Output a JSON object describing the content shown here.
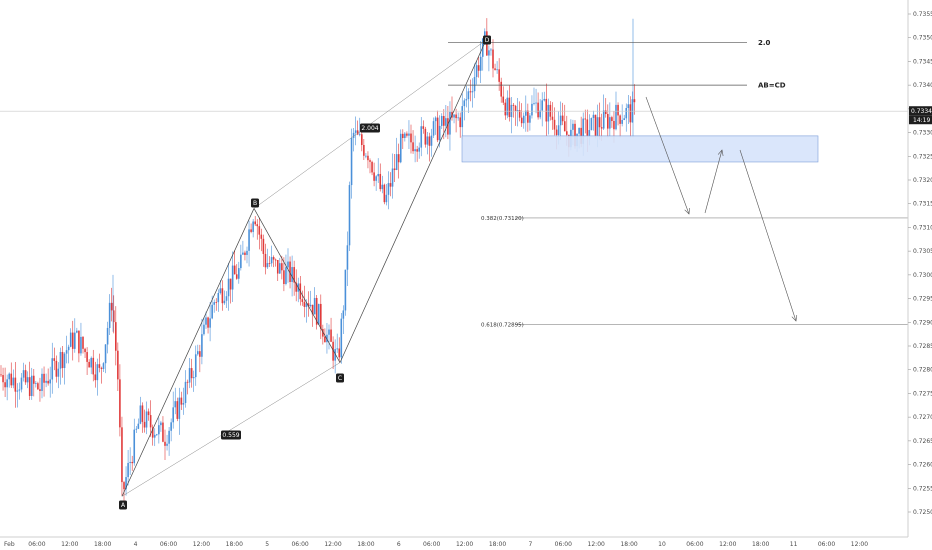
{
  "chart_data": {
    "type": "candlestick",
    "instrument_hint": "",
    "ylim": [
      0.72475,
      0.73575
    ],
    "y_ticks": [
      "0.73550",
      "0.73500",
      "0.73450",
      "0.73400",
      "0.73350",
      "0.73300",
      "0.73250",
      "0.73200",
      "0.73150",
      "0.73100",
      "0.73050",
      "0.73000",
      "0.72950",
      "0.72900",
      "0.72850",
      "0.72800",
      "0.72750",
      "0.72700",
      "0.72650",
      "0.72600",
      "0.72550",
      "0.72500"
    ],
    "x_ticks": [
      "Feb",
      "06:00",
      "12:00",
      "18:00",
      "4",
      "06:00",
      "12:00",
      "18:00",
      "5",
      "06:00",
      "12:00",
      "18:00",
      "6",
      "06:00",
      "12:00",
      "18:00",
      "7",
      "06:00",
      "12:00",
      "18:00",
      "10",
      "06:00",
      "12:00",
      "18:00",
      "11",
      "06:00",
      "12:00"
    ],
    "current_price": "0.73345",
    "countdown": "14:19",
    "colors": {
      "up": "#4a90d9",
      "down": "#e03a3a",
      "zone_fill": "#d6e4fb",
      "zone_stroke": "#6f95d6",
      "line": "#555555",
      "label_bg": "#1e1e1e"
    },
    "pattern_points": [
      {
        "label": "A",
        "price": 0.72533
      },
      {
        "label": "B",
        "price": 0.7314
      },
      {
        "label": "C",
        "price": 0.72815
      },
      {
        "label": "D",
        "price": 0.73495
      }
    ],
    "ratio_labels": [
      {
        "text": "0.559",
        "between": "A-C"
      },
      {
        "text": "2.004",
        "between": "B-D"
      }
    ],
    "levels": [
      {
        "text": "2.0",
        "price": 0.7349
      },
      {
        "text": "AB=CD",
        "price": 0.734
      },
      {
        "text": "0.382(0.73120)",
        "price": 0.7312
      },
      {
        "text": "0.618(0.72895)",
        "price": 0.72895
      }
    ],
    "zone": {
      "top": 0.73293,
      "bottom": 0.73238
    },
    "gridlines": false,
    "legend": "none"
  }
}
